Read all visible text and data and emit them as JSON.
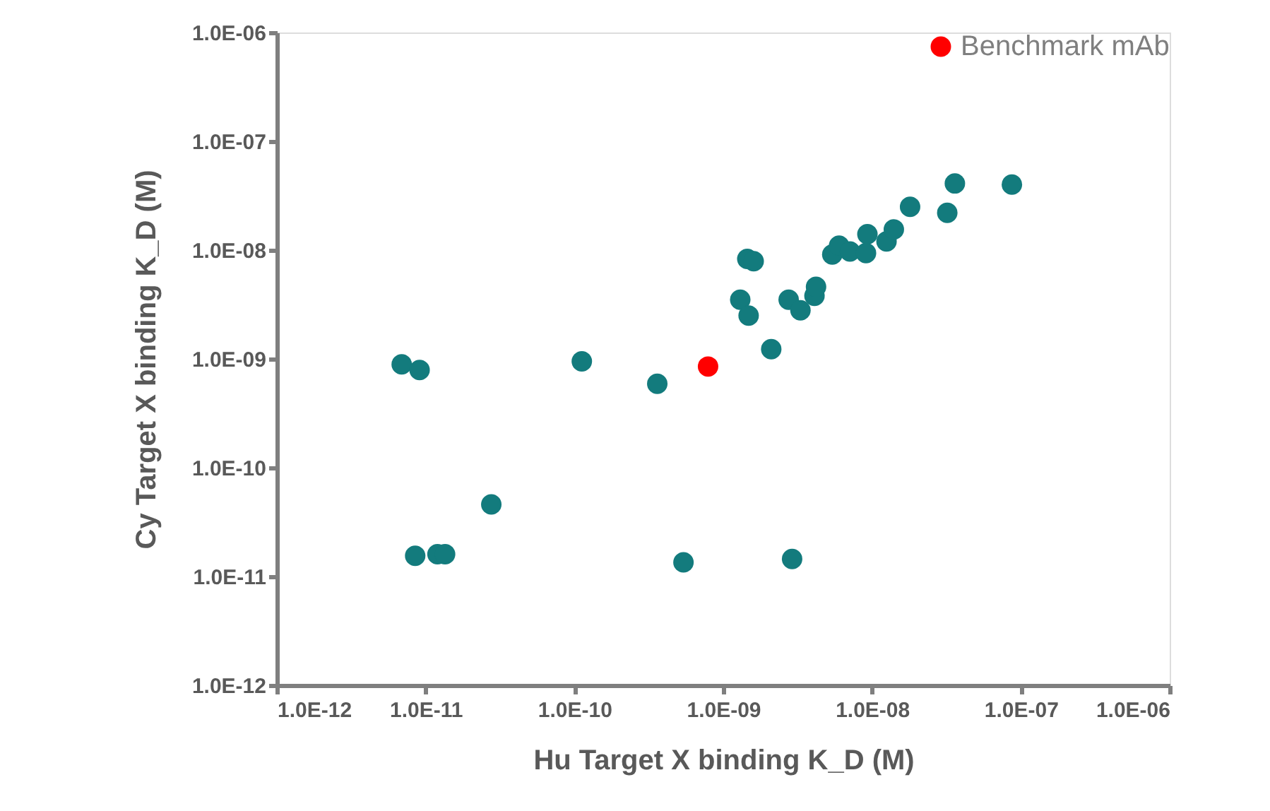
{
  "chart_data": {
    "type": "scatter",
    "xlabel": "Hu Target X binding K_D (M)",
    "ylabel": "Cy Target X binding K_D (M)",
    "log": "xy",
    "grid": false,
    "legend": "top right",
    "marker": "circle",
    "xlim": [
      1e-12,
      1e-06
    ],
    "ylim": [
      1e-12,
      1e-06
    ],
    "xticks": [
      {
        "value": 1e-12,
        "label": "1.0E-12"
      },
      {
        "value": 1e-11,
        "label": "1.0E-11"
      },
      {
        "value": 1e-10,
        "label": "1.0E-10"
      },
      {
        "value": 1e-09,
        "label": "1.0E-09"
      },
      {
        "value": 1e-08,
        "label": "1.0E-08"
      },
      {
        "value": 1e-07,
        "label": "1.0E-07"
      },
      {
        "value": 1e-06,
        "label": "1.0E-06"
      }
    ],
    "yticks": [
      {
        "value": 1e-12,
        "label": "1.0E-12"
      },
      {
        "value": 1e-11,
        "label": "1.0E-11"
      },
      {
        "value": 1e-10,
        "label": "1.0E-10"
      },
      {
        "value": 1e-09,
        "label": "1.0E-09"
      },
      {
        "value": 1e-08,
        "label": "1.0E-08"
      },
      {
        "value": 1e-07,
        "label": "1.0E-07"
      },
      {
        "value": 1e-06,
        "label": "1.0E-06"
      }
    ],
    "series": [
      {
        "color": "#137b7d",
        "x": [
          6.9e-12,
          9.1e-12,
          1.12e-10,
          3.6e-10,
          2.1e-09,
          1.3e-09,
          1.48e-09,
          1.45e-09,
          1.6e-09,
          2.75e-09,
          3.3e-09,
          4.1e-09,
          4.2e-09,
          5.4e-09,
          6e-09,
          7.1e-09,
          9.1e-09,
          9.3e-09,
          1.25e-08,
          1.4e-08,
          1.8e-08,
          3.2e-08,
          3.6e-08,
          8.7e-08,
          8.5e-12,
          1.2e-11,
          1.35e-11,
          2.76e-11,
          5.4e-10,
          2.9e-09
        ],
        "values": [
          8.9e-10,
          7.9e-10,
          9.5e-10,
          5.9e-10,
          1.23e-09,
          3.5e-09,
          2.5e-09,
          8.3e-09,
          7.9e-09,
          3.5e-09,
          2.8e-09,
          3.8e-09,
          4.6e-09,
          9.1e-09,
          1.1e-08,
          9.7e-09,
          9.4e-09,
          1.4e-08,
          1.2e-08,
          1.55e-08,
          2.5e-08,
          2.2e-08,
          4.1e-08,
          4e-08,
          1.55e-11,
          1.6e-11,
          1.6e-11,
          4.6e-11,
          1.35e-11,
          1.45e-11
        ]
      },
      {
        "name": "Benchmark mAb",
        "color": "#ff0000",
        "x": [
          7.9e-10
        ],
        "values": [
          8.5e-10
        ]
      }
    ]
  }
}
